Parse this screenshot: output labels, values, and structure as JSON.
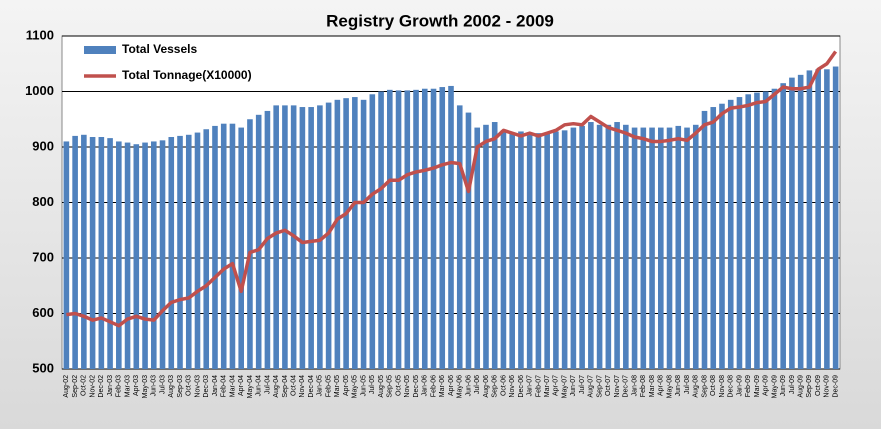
{
  "chart_data": {
    "type": "bar",
    "title": "Registry Growth 2002 - 2009",
    "categories": [
      "Aug-02",
      "Sep-02",
      "Oct-02",
      "Nov-02",
      "Dec-02",
      "Jan-03",
      "Feb-03",
      "Mar-03",
      "Apr-03",
      "May-03",
      "Jun-03",
      "Jul-03",
      "Aug-03",
      "Sep-03",
      "Oct-03",
      "Nov-03",
      "Dec-03",
      "Jan-04",
      "Feb-04",
      "Mar-04",
      "Apr-04",
      "May-04",
      "Jun-04",
      "Jul-04",
      "Aug-04",
      "Sep-04",
      "Oct-04",
      "Nov-04",
      "Dec-04",
      "Jan-05",
      "Feb-05",
      "Mar-05",
      "Apr-05",
      "May-05",
      "Jun-05",
      "Jul-05",
      "Aug-05",
      "Sep-05",
      "Oct-05",
      "Nov-05",
      "Dec-05",
      "Jan-06",
      "Feb-06",
      "Mar-06",
      "Apr-06",
      "May-06",
      "Jun-06",
      "Jul-06",
      "Aug-06",
      "Sep-06",
      "Oct-06",
      "Nov-06",
      "Dec-06",
      "Jan-07",
      "Feb-07",
      "Mar-07",
      "Apr-07",
      "May-07",
      "Jun-07",
      "Jul-07",
      "Aug-07",
      "Sep-07",
      "Oct-07",
      "Nov-07",
      "Dec-07",
      "Jan-08",
      "Feb-08",
      "Mar-08",
      "Apr-08",
      "May-08",
      "Jun-08",
      "Jul-08",
      "Aug-08",
      "Sep-08",
      "Oct-08",
      "Nov-08",
      "Dec-08",
      "Jan-09",
      "Feb-09",
      "Mar-09",
      "Apr-09",
      "May-09",
      "Jun-09",
      "Jul-09",
      "Aug-09",
      "Sep-09",
      "Oct-09",
      "Nov-09",
      "Dec-09"
    ],
    "series": [
      {
        "name": "Total Vessels",
        "type": "bar",
        "color": "#4f81bd",
        "values": [
          910,
          920,
          922,
          918,
          918,
          916,
          910,
          908,
          905,
          908,
          910,
          912,
          918,
          920,
          922,
          926,
          932,
          938,
          942,
          942,
          935,
          950,
          958,
          965,
          975,
          975,
          975,
          972,
          972,
          975,
          980,
          985,
          988,
          990,
          985,
          995,
          1000,
          1003,
          1002,
          1002,
          1003,
          1005,
          1005,
          1008,
          1010,
          975,
          962,
          935,
          940,
          945,
          930,
          925,
          928,
          925,
          925,
          925,
          928,
          930,
          935,
          938,
          945,
          940,
          940,
          945,
          940,
          935,
          935,
          935,
          935,
          935,
          938,
          935,
          940,
          965,
          972,
          978,
          985,
          990,
          995,
          998,
          1000,
          1005,
          1015,
          1025,
          1030,
          1038,
          1040,
          1040,
          1045
        ]
      },
      {
        "name": "Total Tonnage(X10000)",
        "type": "line",
        "color": "#c0504d",
        "values": [
          598,
          600,
          595,
          588,
          592,
          585,
          578,
          590,
          595,
          590,
          588,
          605,
          620,
          625,
          628,
          640,
          650,
          665,
          680,
          690,
          640,
          710,
          715,
          735,
          745,
          750,
          740,
          728,
          730,
          732,
          745,
          770,
          780,
          800,
          800,
          815,
          825,
          840,
          840,
          850,
          855,
          858,
          862,
          868,
          872,
          870,
          820,
          900,
          910,
          915,
          930,
          925,
          920,
          925,
          920,
          925,
          930,
          940,
          942,
          940,
          955,
          945,
          935,
          930,
          925,
          918,
          915,
          910,
          910,
          912,
          915,
          912,
          925,
          940,
          945,
          960,
          970,
          972,
          975,
          980,
          982,
          995,
          1008,
          1005,
          1005,
          1008,
          1040,
          1050,
          1072
        ]
      }
    ],
    "ylim": [
      500,
      1100
    ],
    "yticks": [
      500,
      600,
      700,
      800,
      900,
      1000,
      1100
    ],
    "grid": true,
    "legend": "top-left"
  }
}
